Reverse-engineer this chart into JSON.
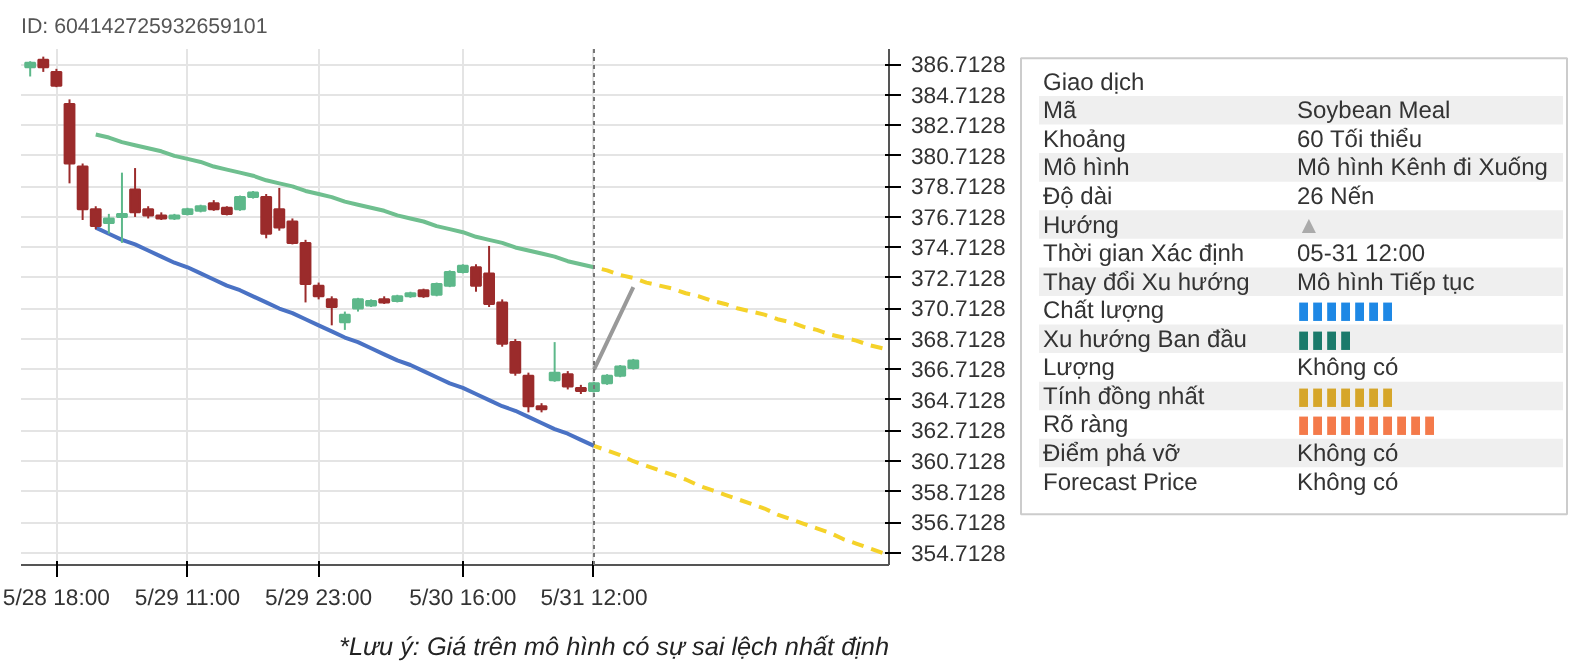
{
  "chart_data": [
    {
      "type": "candlestick",
      "title": "ID: 604142725932659101",
      "categories": [
        null,
        null,
        "5/28 18:00",
        null,
        null,
        null,
        null,
        null,
        null,
        null,
        null,
        null,
        "5/29 11:00",
        null,
        null,
        null,
        null,
        null,
        null,
        null,
        null,
        null,
        "5/29 23:00",
        null,
        null,
        null,
        null,
        null,
        null,
        null,
        null,
        null,
        null,
        "5/30 16:00",
        null,
        null,
        null,
        null,
        null,
        null,
        null,
        null,
        null,
        "5/31 12:00",
        null,
        null,
        null,
        null,
        null,
        null,
        null,
        null,
        null,
        null,
        null,
        null,
        null,
        null,
        null,
        null,
        null,
        null,
        null,
        null,
        null,
        null
      ],
      "ohlc": [
        [
          386.5,
          386.9,
          385.9,
          386.8
        ],
        [
          387.0,
          387.2,
          386.2,
          386.5
        ],
        [
          386.2,
          386.4,
          385.2,
          385.3
        ],
        [
          384.1,
          384.4,
          378.9,
          380.2
        ],
        [
          380.0,
          380.2,
          376.5,
          377.2
        ],
        [
          377.2,
          377.4,
          375.9,
          376.1
        ],
        [
          376.3,
          376.9,
          375.6,
          376.6
        ],
        [
          376.7,
          379.6,
          375.0,
          376.9
        ],
        [
          378.5,
          379.9,
          376.7,
          377.0
        ],
        [
          377.2,
          377.4,
          376.6,
          376.8
        ],
        [
          376.8,
          377.0,
          376.5,
          376.6
        ],
        [
          376.6,
          376.9,
          376.5,
          376.8
        ],
        [
          376.9,
          377.3,
          376.8,
          377.2
        ],
        [
          377.1,
          377.5,
          377.0,
          377.4
        ],
        [
          377.6,
          377.8,
          377.1,
          377.2
        ],
        [
          377.3,
          377.4,
          376.8,
          376.9
        ],
        [
          377.2,
          378.1,
          377.1,
          378.0
        ],
        [
          378.0,
          378.4,
          377.9,
          378.3
        ],
        [
          378.0,
          378.2,
          375.3,
          375.6
        ],
        [
          377.2,
          378.6,
          375.8,
          376.0
        ],
        [
          376.4,
          376.6,
          374.9,
          375.0
        ],
        [
          375.0,
          375.2,
          371.1,
          372.3
        ],
        [
          372.2,
          372.4,
          371.3,
          371.5
        ],
        [
          371.3,
          371.5,
          369.6,
          370.8
        ],
        [
          369.8,
          370.5,
          369.3,
          370.3
        ],
        [
          370.7,
          371.4,
          370.5,
          371.3
        ],
        [
          370.9,
          371.3,
          370.8,
          371.2
        ],
        [
          371.3,
          371.5,
          371.0,
          371.1
        ],
        [
          371.2,
          371.6,
          371.1,
          371.5
        ],
        [
          371.5,
          371.8,
          371.4,
          371.7
        ],
        [
          371.9,
          372.0,
          371.4,
          371.5
        ],
        [
          371.6,
          372.4,
          371.5,
          372.3
        ],
        [
          372.2,
          373.2,
          372.1,
          373.1
        ],
        [
          373.1,
          373.6,
          373.0,
          373.5
        ],
        [
          373.4,
          373.6,
          371.8,
          372.2
        ],
        [
          373.0,
          374.8,
          370.8,
          371.0
        ],
        [
          371.1,
          371.3,
          368.2,
          368.4
        ],
        [
          368.5,
          368.7,
          366.3,
          366.5
        ],
        [
          366.3,
          366.5,
          363.9,
          364.3
        ],
        [
          364.3,
          364.5,
          363.9,
          364.1
        ],
        [
          366.0,
          368.5,
          365.9,
          366.5
        ],
        [
          366.4,
          366.6,
          365.4,
          365.6
        ],
        [
          365.5,
          365.7,
          365.1,
          365.3
        ],
        [
          365.3,
          365.9,
          365.2,
          365.8
        ],
        [
          365.8,
          366.4,
          365.7,
          366.3
        ],
        [
          366.3,
          367.0,
          366.2,
          366.9
        ],
        [
          366.8,
          367.4,
          366.7,
          367.3
        ],
        null,
        null,
        null,
        null,
        null,
        null,
        null,
        null,
        null,
        null,
        null,
        null,
        null,
        null,
        null,
        null,
        null,
        null,
        null
      ],
      "colors": [
        "#5db88a",
        "#9b2b2b",
        "#9b2b2b",
        "#9b2b2b",
        "#9b2b2b",
        "#9b2b2b",
        "#5db88a",
        "#5db88a",
        "#9b2b2b",
        "#9b2b2b",
        "#9b2b2b",
        "#5db88a",
        "#5db88a",
        "#5db88a",
        "#9b2b2b",
        "#9b2b2b",
        "#5db88a",
        "#5db88a",
        "#9b2b2b",
        "#9b2b2b",
        "#9b2b2b",
        "#9b2b2b",
        "#9b2b2b",
        "#9b2b2b",
        "#5db88a",
        "#5db88a",
        "#5db88a",
        "#9b2b2b",
        "#5db88a",
        "#5db88a",
        "#9b2b2b",
        "#5db88a",
        "#5db88a",
        "#5db88a",
        "#9b2b2b",
        "#9b2b2b",
        "#9b2b2b",
        "#9b2b2b",
        "#9b2b2b",
        "#9b2b2b",
        "#5db88a",
        "#9b2b2b",
        "#9b2b2b",
        "#5db88a",
        "#5db88a",
        "#5db88a",
        "#5db88a",
        null,
        null,
        null,
        null,
        null,
        null,
        null,
        null,
        null,
        null,
        null,
        null,
        null,
        null,
        null,
        null,
        null,
        null,
        null
      ],
      "series": [
        {
          "type": "line",
          "color": "#6fbf8f",
          "values": [
            null,
            null,
            null,
            null,
            null,
            382.1,
            381.9,
            381.6,
            381.4,
            381.2,
            381.0,
            380.7,
            380.5,
            380.3,
            380.0,
            379.8,
            379.6,
            379.4,
            379.1,
            378.9,
            378.7,
            378.4,
            378.2,
            378.0,
            377.7,
            377.5,
            377.3,
            377.1,
            376.8,
            376.6,
            376.4,
            376.1,
            375.9,
            375.7,
            375.4,
            375.2,
            375.0,
            374.7,
            374.5,
            374.3,
            374.1,
            373.8,
            373.6,
            373.4,
            null,
            null,
            null,
            null,
            null,
            null,
            null,
            null,
            null,
            null,
            null,
            null,
            null,
            null,
            null,
            null,
            null,
            null,
            null,
            null,
            null,
            null
          ]
        },
        {
          "type": "line",
          "color": "#4a72c4",
          "values": [
            null,
            null,
            null,
            null,
            null,
            376.0,
            375.6,
            375.2,
            374.9,
            374.5,
            374.1,
            373.7,
            373.4,
            373.0,
            372.6,
            372.2,
            371.9,
            371.5,
            371.1,
            370.7,
            370.4,
            370.0,
            369.6,
            369.2,
            368.8,
            368.5,
            368.1,
            367.7,
            367.3,
            367.0,
            366.6,
            366.2,
            365.8,
            365.5,
            365.1,
            364.7,
            364.3,
            364.0,
            363.6,
            363.2,
            362.8,
            362.5,
            362.1,
            361.7,
            null,
            null,
            null,
            null,
            null,
            null,
            null,
            null,
            null,
            null,
            null,
            null,
            null,
            null,
            null,
            null,
            null,
            null,
            null,
            null,
            null,
            null
          ]
        },
        {
          "type": "line",
          "color": "#f5d22a",
          "line_style": "dashed",
          "values": [
            null,
            null,
            null,
            null,
            null,
            null,
            null,
            null,
            null,
            null,
            null,
            null,
            null,
            null,
            null,
            null,
            null,
            null,
            null,
            null,
            null,
            null,
            null,
            null,
            null,
            null,
            null,
            null,
            null,
            null,
            null,
            null,
            null,
            null,
            null,
            null,
            null,
            null,
            null,
            null,
            null,
            null,
            null,
            373.4,
            373.2,
            372.9,
            372.7,
            372.4,
            372.2,
            372.0,
            371.7,
            371.5,
            371.2,
            371.0,
            370.7,
            370.5,
            370.3,
            370.0,
            369.8,
            369.5,
            369.3,
            369.0,
            368.8,
            368.6,
            368.3,
            368.1
          ]
        },
        {
          "type": "line",
          "color": "#f5d22a",
          "line_style": "dashed",
          "values": [
            null,
            null,
            null,
            null,
            null,
            null,
            null,
            null,
            null,
            null,
            null,
            null,
            null,
            null,
            null,
            null,
            null,
            null,
            null,
            null,
            null,
            null,
            null,
            null,
            null,
            null,
            null,
            null,
            null,
            null,
            null,
            null,
            null,
            null,
            null,
            null,
            null,
            null,
            null,
            null,
            null,
            null,
            null,
            361.7,
            361.4,
            361.1,
            360.7,
            360.4,
            360.1,
            359.8,
            359.5,
            359.1,
            358.8,
            358.5,
            358.2,
            357.9,
            357.6,
            357.2,
            356.9,
            356.6,
            356.3,
            356.0,
            355.6,
            355.3,
            355.0,
            354.7
          ]
        },
        {
          "type": "line",
          "color": "#999999",
          "values": [
            null,
            null,
            null,
            null,
            null,
            null,
            null,
            null,
            null,
            null,
            null,
            null,
            null,
            null,
            null,
            null,
            null,
            null,
            null,
            null,
            null,
            null,
            null,
            null,
            null,
            null,
            null,
            null,
            null,
            null,
            null,
            null,
            null,
            null,
            null,
            null,
            null,
            null,
            null,
            null,
            null,
            null,
            null,
            366.7,
            368.5,
            370.3,
            372.1,
            null,
            null,
            null,
            null,
            null,
            null,
            null,
            null,
            null,
            null,
            null,
            null,
            null,
            null,
            null,
            null,
            null,
            null,
            null
          ]
        }
      ],
      "ylim": [
        353.9,
        387.7
      ],
      "yticks": [
        354.7128,
        356.7128,
        358.7128,
        360.7128,
        362.7128,
        364.7128,
        366.7128,
        368.7128,
        370.7128,
        372.7128,
        374.7128,
        376.7128,
        378.7128,
        380.7128,
        382.7128,
        384.7128,
        386.7128
      ],
      "ref_lines": [
        {
          "axis": "x",
          "value": "5/31 12:00",
          "color": "#777777",
          "line_style": "dotted"
        }
      ],
      "grid": true,
      "annotations": [
        "*Lưu ý: Giá trên mô hình có sự sai lệch nhất định"
      ]
    },
    {
      "type": "other",
      "y_categories": [
        "Giao dịch",
        "Mã",
        "Khoảng",
        "Mô hình",
        "Độ dài",
        "Hướng",
        "Thời gian Xác định",
        "Thay đổi Xu hướng",
        "Chất lượng",
        "Xu hướng Ban đầu",
        "Lượng",
        "Tính đồng nhất",
        "Rõ ràng",
        "Điểm phá vỡ",
        "Forecast Price"
      ],
      "value_labels": [
        null,
        "Soybean Meal",
        "60 Tối thiểu",
        "Mô hình Kênh đi Xuống",
        "26 Nến",
        "▲",
        "05-31 12:00",
        "Mô hình Tiếp tục",
        "▮▮▮▮▮▮▮",
        "▮▮▮▮",
        "Không có",
        "▮▮▮▮▮▮▮",
        "▮▮▮▮▮▮▮▮▮▮",
        "Không có",
        "Không có"
      ],
      "colors": [
        "#333333",
        "#333333",
        "#333333",
        "#333333",
        "#333333",
        "#aaaaaa",
        "#333333",
        "#333333",
        "#1e88e5",
        "#1b7a6b",
        "#333333",
        "#d6a62a",
        "#f47a4a",
        "#333333",
        "#333333"
      ]
    }
  ]
}
